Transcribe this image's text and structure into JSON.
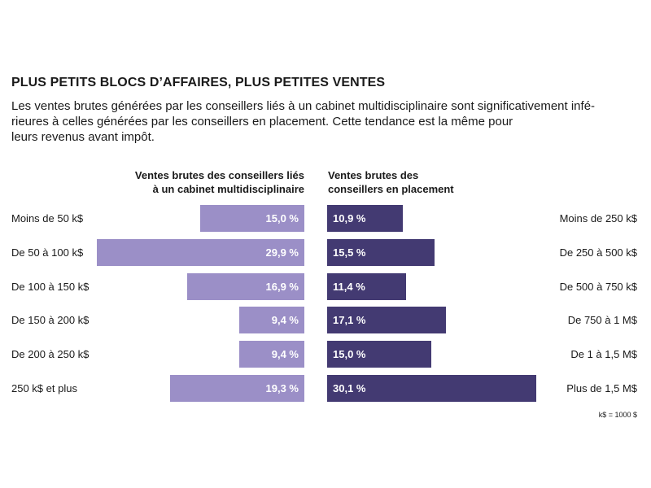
{
  "title": "PLUS PETITS BLOCS D’AFFAIRES, PLUS PETITES VENTES",
  "subtitle": "Les ventes brutes générées par les conseillers liés à un cabinet multidisciplinaire sont significativement infé-\nrieures à celles générées par les conseillers en placement. Cette tendance est la même pour\nleurs revenus avant impôt.",
  "footnote": "k$ = 1000 $",
  "chart_data": [
    {
      "type": "bar",
      "orientation": "horizontal",
      "direction": "right-to-left",
      "title": "Ventes brutes des conseillers liés\nà un cabinet multidisciplinaire",
      "categories": [
        "Moins de 50 k$",
        "De 50 à 100 k$",
        "De 100 à 150 k$",
        "De 150 à 200 k$",
        "De 200 à 250 k$",
        "250 k$ et plus"
      ],
      "values": [
        15.0,
        29.9,
        16.9,
        9.4,
        9.4,
        19.3
      ],
      "value_labels": [
        "15,0 %",
        "29,9 %",
        "16,9 %",
        "9,4 %",
        "9,4 %",
        "19,3 %"
      ],
      "color": "#9b8fc7"
    },
    {
      "type": "bar",
      "orientation": "horizontal",
      "direction": "left-to-right",
      "title": "Ventes brutes des\nconseillers en placement",
      "categories": [
        "Moins de 250 k$",
        "De 250 à 500 k$",
        "De 500 à 750 k$",
        "De 750 à 1 M$",
        "De 1 à 1,5 M$",
        "Plus de 1,5 M$"
      ],
      "values": [
        10.9,
        15.5,
        11.4,
        17.1,
        15.0,
        30.1
      ],
      "value_labels": [
        "10,9 %",
        "15,5 %",
        "11,4 %",
        "17,1 %",
        "15,0 %",
        "30,1 %"
      ],
      "color": "#433a72"
    }
  ]
}
